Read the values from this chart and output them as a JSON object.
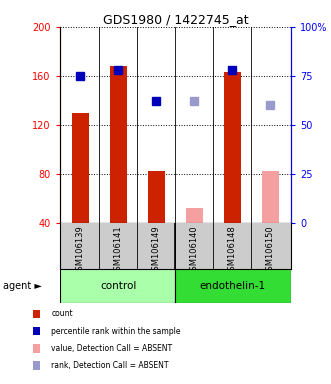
{
  "title": "GDS1980 / 1422745_at",
  "samples": [
    "GSM106139",
    "GSM106141",
    "GSM106149",
    "GSM106140",
    "GSM106148",
    "GSM106150"
  ],
  "groups": [
    "control",
    "control",
    "control",
    "endothelin-1",
    "endothelin-1",
    "endothelin-1"
  ],
  "bar_values": [
    130,
    168,
    82,
    52,
    163,
    82
  ],
  "bar_absent": [
    false,
    false,
    false,
    true,
    false,
    true
  ],
  "rank_values": [
    75,
    78,
    62,
    62,
    78,
    60
  ],
  "rank_absent": [
    false,
    false,
    false,
    true,
    false,
    true
  ],
  "ylim_left": [
    40,
    200
  ],
  "ylim_right": [
    0,
    100
  ],
  "yticks_left": [
    40,
    80,
    120,
    160,
    200
  ],
  "yticks_right": [
    0,
    25,
    50,
    75,
    100
  ],
  "yticklabels_right": [
    "0",
    "25",
    "50",
    "75",
    "100%"
  ],
  "bar_color_present": "#cc2200",
  "bar_color_absent": "#f4a0a0",
  "rank_color_present": "#0000bb",
  "rank_color_absent": "#9999cc",
  "group_color_control": "#aaffaa",
  "group_color_endothelin": "#33dd33",
  "bar_width": 0.45,
  "marker_size": 6,
  "legend_items": [
    {
      "color": "#cc2200",
      "label": "count"
    },
    {
      "color": "#0000bb",
      "label": "percentile rank within the sample"
    },
    {
      "color": "#f4a0a0",
      "label": "value, Detection Call = ABSENT"
    },
    {
      "color": "#9999cc",
      "label": "rank, Detection Call = ABSENT"
    }
  ]
}
